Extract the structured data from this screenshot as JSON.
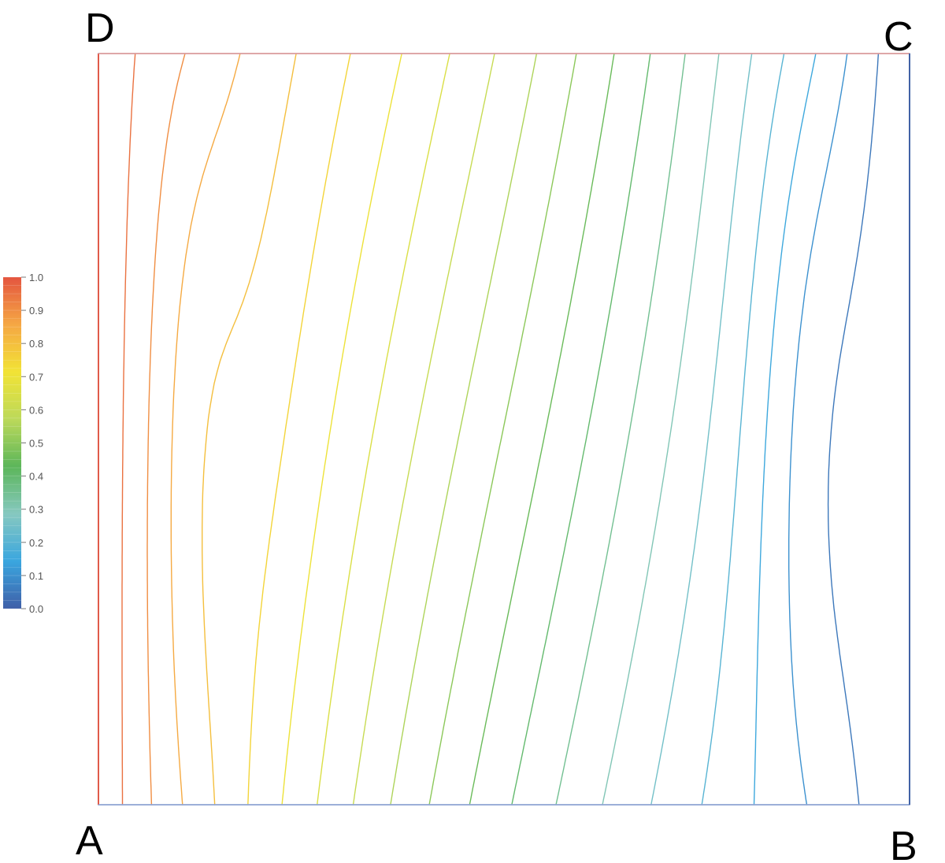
{
  "chart_data": {
    "type": "contour",
    "title": "",
    "xlabel": "",
    "ylabel": "",
    "corner_labels": {
      "top_left": "D",
      "top_right": "C",
      "bottom_left": "A",
      "bottom_right": "B"
    },
    "colorbar": {
      "min": 0.0,
      "max": 1.0,
      "tick_labels": [
        "1.0",
        "0.9",
        "0.8",
        "0.7",
        "0.6",
        "0.5",
        "0.4",
        "0.3",
        "0.2",
        "0.1",
        "0.0"
      ],
      "colors": [
        "#3f5fa8",
        "#3aa6df",
        "#86c8c0",
        "#5cb65a",
        "#bcd95a",
        "#f2e335",
        "#f5a744",
        "#e4553f"
      ]
    },
    "boundary_values": {
      "left_wall_AD": 1.0,
      "right_wall_BC": 0.0
    },
    "contour_levels": [
      0.05,
      0.1,
      0.15,
      0.2,
      0.25,
      0.3,
      0.35,
      0.4,
      0.45,
      0.5,
      0.55,
      0.6,
      0.65,
      0.7,
      0.75,
      0.8,
      0.85,
      0.9,
      0.95
    ],
    "grid": false,
    "legend": "colorbar at left"
  }
}
